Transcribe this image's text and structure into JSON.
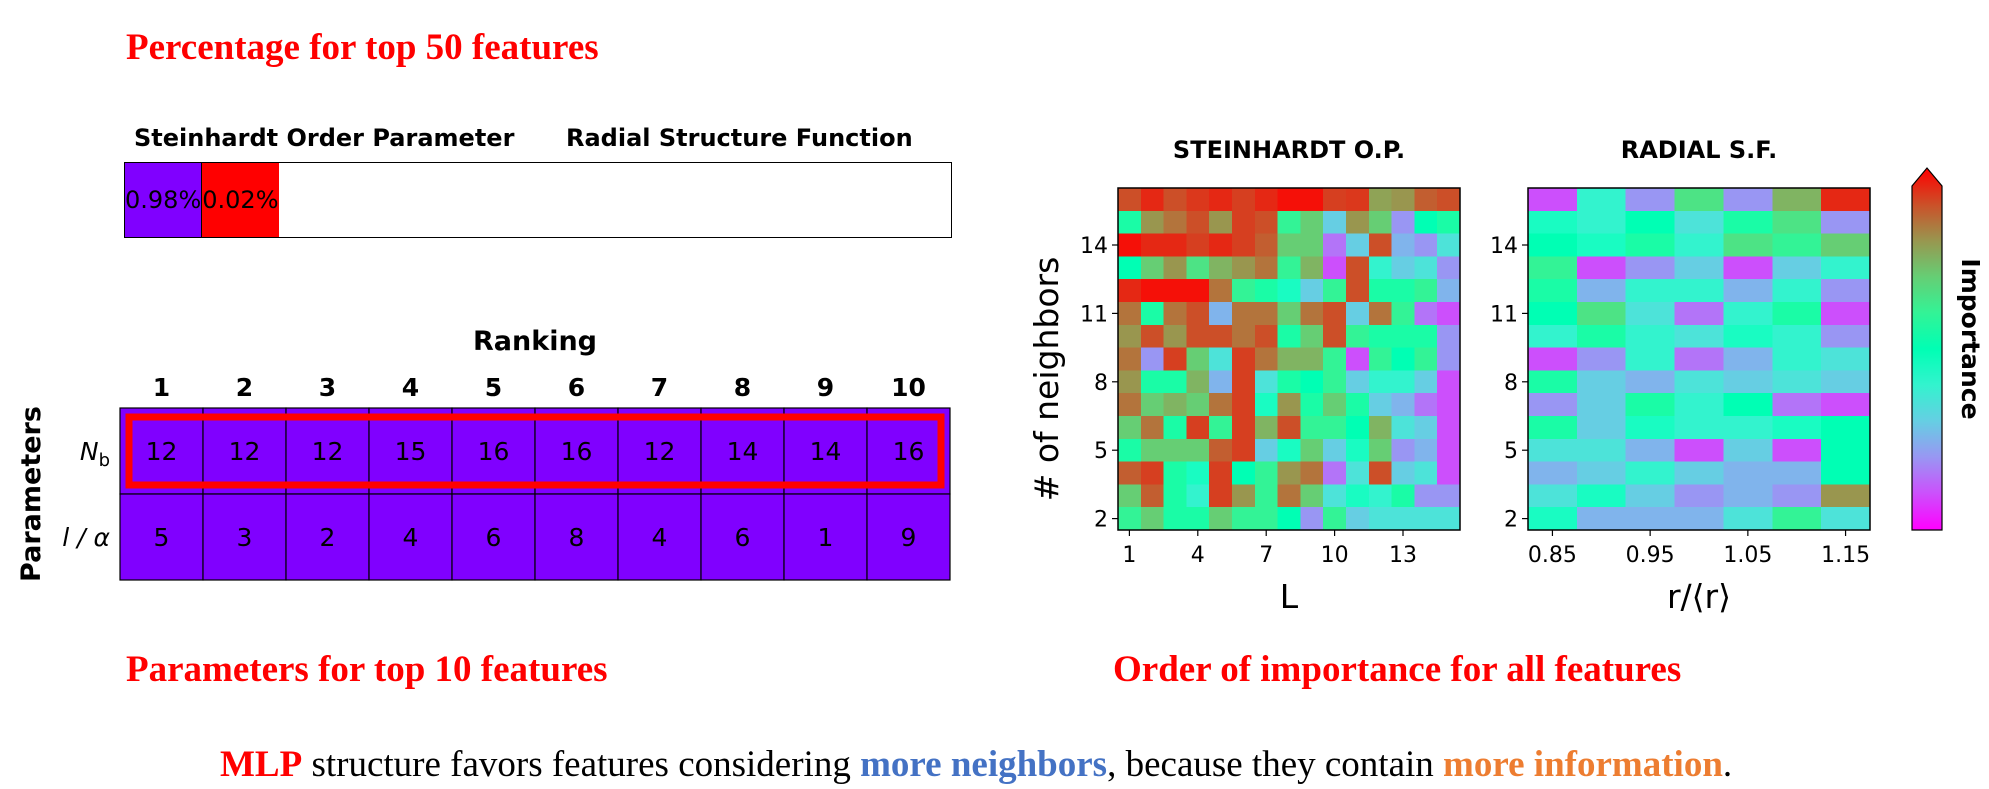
{
  "headings": {
    "top": "Percentage for top 50 features",
    "bottom_left": "Parameters for top 10 features",
    "bottom_right": "Order of importance for all features"
  },
  "footer": {
    "part1": "MLP",
    "part2": " structure favors features considering ",
    "part3": "more neighbors",
    "part4": ", because they contain ",
    "part5": "more information",
    "part6": ".",
    "colors": {
      "mlp": "#ff0000",
      "neighbors": "#4472c4",
      "information": "#ed7d31"
    }
  },
  "chart_data": [
    {
      "type": "bar",
      "title": "",
      "categories": [
        "Steinhardt Order Parameter",
        "Radial Structure Function"
      ],
      "values": [
        0.98,
        0.02
      ],
      "value_labels": [
        "0.98%",
        "0.02%"
      ],
      "colors": [
        "#8000ff",
        "#ff0000"
      ]
    },
    {
      "type": "table",
      "title": "Ranking",
      "ylabel": "Parameters",
      "columns": [
        "1",
        "2",
        "3",
        "4",
        "5",
        "6",
        "7",
        "8",
        "9",
        "10"
      ],
      "rows": [
        {
          "name": "N_b",
          "values": [
            12,
            12,
            12,
            15,
            16,
            16,
            12,
            14,
            14,
            16
          ],
          "highlighted": true
        },
        {
          "name": "l / α",
          "values": [
            5,
            3,
            2,
            4,
            6,
            8,
            4,
            6,
            1,
            9
          ],
          "highlighted": false
        }
      ],
      "cell_color": "#8000ff",
      "highlight_color": "#ff0000"
    },
    {
      "type": "heatmap",
      "title": "STEINHARDT O.P.",
      "xlabel": "L",
      "ylabel": "# of neighbors",
      "x_ticks": [
        "1",
        "4",
        "7",
        "10",
        "13"
      ],
      "y_ticks": [
        "2",
        "5",
        "8",
        "11",
        "14"
      ],
      "x_range": [
        1,
        15
      ],
      "y_range": [
        2,
        16
      ],
      "cmap": "rainbow",
      "values": [
        [
          0.9,
          0.95,
          0.9,
          0.93,
          0.95,
          0.92,
          0.95,
          0.98,
          0.98,
          0.92,
          0.93,
          0.78,
          0.8,
          0.88,
          0.9
        ],
        [
          0.55,
          0.8,
          0.85,
          0.9,
          0.8,
          0.92,
          0.9,
          0.6,
          0.7,
          0.3,
          0.8,
          0.7,
          0.2,
          0.5,
          0.55
        ],
        [
          0.98,
          0.95,
          0.95,
          0.92,
          0.95,
          0.92,
          0.88,
          0.7,
          0.7,
          0.15,
          0.3,
          0.9,
          0.25,
          0.2,
          0.35
        ],
        [
          0.5,
          0.7,
          0.8,
          0.65,
          0.75,
          0.8,
          0.85,
          0.6,
          0.75,
          0.1,
          0.9,
          0.4,
          0.3,
          0.35,
          0.2
        ],
        [
          0.95,
          0.98,
          0.98,
          0.98,
          0.85,
          0.6,
          0.55,
          0.45,
          0.3,
          0.6,
          0.9,
          0.55,
          0.55,
          0.6,
          0.25
        ],
        [
          0.85,
          0.55,
          0.85,
          0.9,
          0.25,
          0.85,
          0.85,
          0.7,
          0.85,
          0.9,
          0.3,
          0.85,
          0.6,
          0.15,
          0.1
        ],
        [
          0.8,
          0.9,
          0.8,
          0.9,
          0.9,
          0.85,
          0.9,
          0.55,
          0.7,
          0.9,
          0.6,
          0.55,
          0.55,
          0.55,
          0.2
        ],
        [
          0.85,
          0.2,
          0.92,
          0.7,
          0.35,
          0.92,
          0.85,
          0.75,
          0.75,
          0.6,
          0.1,
          0.6,
          0.5,
          0.6,
          0.2
        ],
        [
          0.8,
          0.55,
          0.55,
          0.75,
          0.25,
          0.92,
          0.35,
          0.55,
          0.5,
          0.6,
          0.3,
          0.4,
          0.4,
          0.3,
          0.1
        ],
        [
          0.85,
          0.7,
          0.75,
          0.7,
          0.85,
          0.92,
          0.45,
          0.8,
          0.55,
          0.7,
          0.55,
          0.3,
          0.25,
          0.15,
          0.1
        ],
        [
          0.7,
          0.85,
          0.55,
          0.92,
          0.6,
          0.92,
          0.75,
          0.9,
          0.6,
          0.6,
          0.5,
          0.75,
          0.35,
          0.3,
          0.1
        ],
        [
          0.55,
          0.7,
          0.7,
          0.7,
          0.88,
          0.92,
          0.3,
          0.45,
          0.7,
          0.3,
          0.45,
          0.7,
          0.2,
          0.25,
          0.1
        ],
        [
          0.88,
          0.92,
          0.55,
          0.45,
          0.92,
          0.5,
          0.6,
          0.8,
          0.85,
          0.15,
          0.35,
          0.9,
          0.3,
          0.35,
          0.1
        ],
        [
          0.7,
          0.88,
          0.55,
          0.4,
          0.92,
          0.8,
          0.6,
          0.85,
          0.7,
          0.35,
          0.45,
          0.4,
          0.55,
          0.2,
          0.2
        ],
        [
          0.6,
          0.7,
          0.55,
          0.55,
          0.7,
          0.6,
          0.6,
          0.5,
          0.2,
          0.6,
          0.3,
          0.35,
          0.35,
          0.35,
          0.35
        ]
      ]
    },
    {
      "type": "heatmap",
      "title": "RADIAL S.F.",
      "xlabel": "r/⟨r⟩",
      "ylabel": "",
      "x_ticks": [
        "0.85",
        "0.95",
        "1.05",
        "1.15"
      ],
      "y_ticks": [
        "2",
        "5",
        "8",
        "11",
        "14"
      ],
      "x_range": [
        0.85,
        1.15
      ],
      "y_range": [
        2,
        16
      ],
      "cmap": "rainbow",
      "colorbar_label": "Importance",
      "values": [
        [
          0.1,
          0.4,
          0.2,
          0.65,
          0.2,
          0.75,
          0.95
        ],
        [
          0.45,
          0.4,
          0.5,
          0.35,
          0.55,
          0.65,
          0.2
        ],
        [
          0.5,
          0.45,
          0.55,
          0.4,
          0.65,
          0.6,
          0.7
        ],
        [
          0.6,
          0.1,
          0.2,
          0.3,
          0.1,
          0.3,
          0.4
        ],
        [
          0.55,
          0.25,
          0.4,
          0.4,
          0.25,
          0.4,
          0.2
        ],
        [
          0.5,
          0.65,
          0.35,
          0.15,
          0.4,
          0.55,
          0.1
        ],
        [
          0.4,
          0.55,
          0.4,
          0.35,
          0.45,
          0.4,
          0.2
        ],
        [
          0.1,
          0.2,
          0.4,
          0.15,
          0.25,
          0.4,
          0.35
        ],
        [
          0.55,
          0.3,
          0.25,
          0.35,
          0.3,
          0.35,
          0.3
        ],
        [
          0.2,
          0.3,
          0.55,
          0.4,
          0.5,
          0.15,
          0.1
        ],
        [
          0.55,
          0.3,
          0.45,
          0.4,
          0.4,
          0.45,
          0.5
        ],
        [
          0.35,
          0.35,
          0.25,
          0.1,
          0.3,
          0.1,
          0.5
        ],
        [
          0.25,
          0.3,
          0.4,
          0.3,
          0.25,
          0.25,
          0.5
        ],
        [
          0.35,
          0.45,
          0.3,
          0.2,
          0.25,
          0.2,
          0.8
        ],
        [
          0.45,
          0.25,
          0.25,
          0.25,
          0.35,
          0.6,
          0.35
        ]
      ]
    }
  ]
}
